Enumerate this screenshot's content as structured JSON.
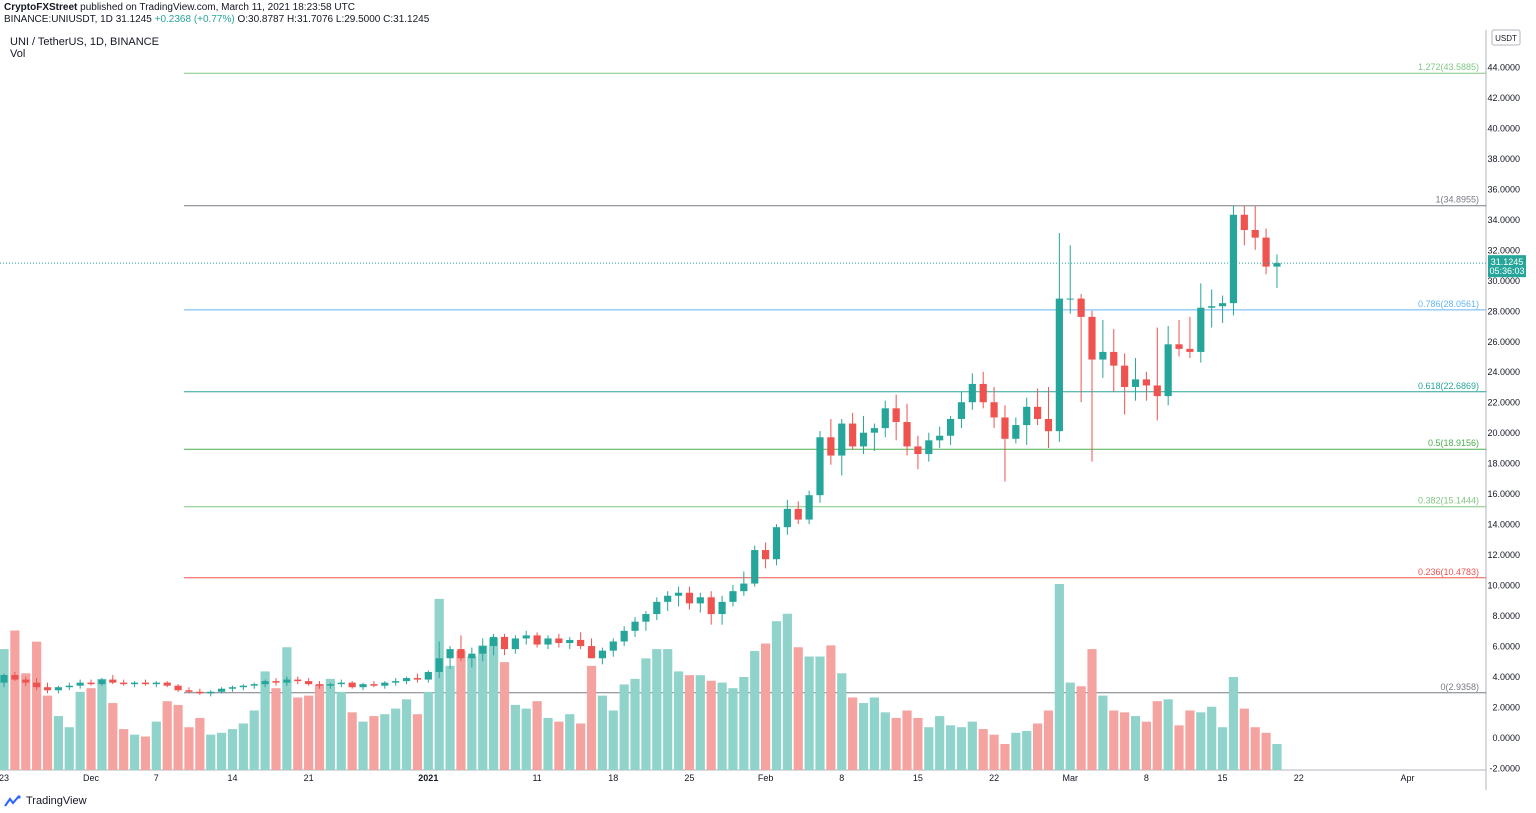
{
  "header": {
    "publisher": "CryptoFXStreet",
    "published_text": "published on TradingView.com, March 11, 2021 18:23:58 UTC",
    "symbol_line": "BINANCE:UNIUSDT, 1D",
    "price": "31.1245",
    "change": "+0.2368 (+0.77%)",
    "ohlc": "O:30.8787 H:31.7076 L:29.5000 C:31.1245"
  },
  "legend": {
    "title": "UNI / TetherUS, 1D, BINANCE",
    "vol_label": "Vol"
  },
  "footer": {
    "brand": "TradingView"
  },
  "colors": {
    "up": "#26a69a",
    "down": "#ef5350",
    "vol_up": "#8fd3cb",
    "vol_down": "#f5a3a1"
  },
  "chart_data": {
    "type": "candlestick",
    "ylim": [
      -2,
      46
    ],
    "currency_label": "USDT",
    "y_ticks": [
      "-2.0000",
      "0.0000",
      "2.0000",
      "4.0000",
      "6.0000",
      "8.0000",
      "10.0000",
      "12.0000",
      "14.0000",
      "16.0000",
      "18.0000",
      "20.0000",
      "22.0000",
      "24.0000",
      "26.0000",
      "28.0000",
      "30.0000",
      "32.0000",
      "34.0000",
      "36.0000",
      "38.0000",
      "40.0000",
      "42.0000",
      "44.0000"
    ],
    "top_partial_tick": "4",
    "x_ticks": [
      {
        "label": "23",
        "date": "2020-11-23",
        "bold": false
      },
      {
        "label": "Dec",
        "date": "2020-12-01",
        "bold": false
      },
      {
        "label": "7",
        "date": "2020-12-07",
        "bold": false
      },
      {
        "label": "14",
        "date": "2020-12-14",
        "bold": false
      },
      {
        "label": "21",
        "date": "2020-12-21",
        "bold": false
      },
      {
        "label": "2021",
        "date": "2021-01-01",
        "bold": true
      },
      {
        "label": "11",
        "date": "2021-01-11",
        "bold": false
      },
      {
        "label": "18",
        "date": "2021-01-18",
        "bold": false
      },
      {
        "label": "25",
        "date": "2021-01-25",
        "bold": false
      },
      {
        "label": "Feb",
        "date": "2021-02-01",
        "bold": false
      },
      {
        "label": "8",
        "date": "2021-02-08",
        "bold": false
      },
      {
        "label": "15",
        "date": "2021-02-15",
        "bold": false
      },
      {
        "label": "22",
        "date": "2021-02-22",
        "bold": false
      },
      {
        "label": "Mar",
        "date": "2021-03-01",
        "bold": false
      },
      {
        "label": "8",
        "date": "2021-03-08",
        "bold": false
      },
      {
        "label": "15",
        "date": "2021-03-15",
        "bold": false
      },
      {
        "label": "22",
        "date": "2021-03-22",
        "bold": false
      },
      {
        "label": "Apr",
        "date": "2021-04-01",
        "bold": false
      }
    ],
    "last_price": {
      "value": 31.1245,
      "label": "31.1245",
      "countdown": "05:36:03"
    },
    "fib_levels": [
      {
        "ratio": "1.272",
        "value": 43.5885,
        "label": "1.272(43.5885)",
        "color": "#81c784"
      },
      {
        "ratio": "1",
        "value": 34.8955,
        "label": "1(34.8955)",
        "color": "#787b86"
      },
      {
        "ratio": "0.786",
        "value": 28.0561,
        "label": "0.786(28.0561)",
        "color": "#64b5f6"
      },
      {
        "ratio": "0.618",
        "value": 22.6869,
        "label": "0.618(22.6869)",
        "color": "#26a69a"
      },
      {
        "ratio": "0.5",
        "value": 18.9156,
        "label": "0.5(18.9156)",
        "color": "#4caf50"
      },
      {
        "ratio": "0.382",
        "value": 15.1444,
        "label": "0.382(15.1444)",
        "color": "#81c784"
      },
      {
        "ratio": "0.236",
        "value": 10.4783,
        "label": "0.236(10.4783)",
        "color": "#ef5350"
      },
      {
        "ratio": "0",
        "value": 2.9358,
        "label": "0(2.9358)",
        "color": "#787b86"
      }
    ],
    "start_date": "2020-11-22",
    "candles": [
      {
        "o": 3.6,
        "h": 4.2,
        "l": 3.3,
        "c": 4.1,
        "v": 6.5
      },
      {
        "o": 4.1,
        "h": 4.3,
        "l": 3.7,
        "c": 3.8,
        "v": 7.5
      },
      {
        "o": 3.8,
        "h": 4.0,
        "l": 3.4,
        "c": 3.6,
        "v": 5.2
      },
      {
        "o": 3.6,
        "h": 3.9,
        "l": 3.1,
        "c": 3.3,
        "v": 6.9
      },
      {
        "o": 3.3,
        "h": 3.6,
        "l": 2.9,
        "c": 3.1,
        "v": 4.0
      },
      {
        "o": 3.1,
        "h": 3.4,
        "l": 2.9,
        "c": 3.3,
        "v": 2.9
      },
      {
        "o": 3.3,
        "h": 3.6,
        "l": 3.1,
        "c": 3.4,
        "v": 2.3
      },
      {
        "o": 3.4,
        "h": 3.8,
        "l": 3.2,
        "c": 3.6,
        "v": 4.2
      },
      {
        "o": 3.6,
        "h": 3.8,
        "l": 3.4,
        "c": 3.5,
        "v": 4.4
      },
      {
        "o": 3.5,
        "h": 3.9,
        "l": 3.4,
        "c": 3.8,
        "v": 4.9
      },
      {
        "o": 3.8,
        "h": 4.1,
        "l": 3.5,
        "c": 3.6,
        "v": 3.6
      },
      {
        "o": 3.6,
        "h": 3.8,
        "l": 3.4,
        "c": 3.5,
        "v": 2.2
      },
      {
        "o": 3.5,
        "h": 3.7,
        "l": 3.3,
        "c": 3.6,
        "v": 1.9
      },
      {
        "o": 3.6,
        "h": 3.8,
        "l": 3.4,
        "c": 3.5,
        "v": 1.8
      },
      {
        "o": 3.5,
        "h": 3.7,
        "l": 3.3,
        "c": 3.6,
        "v": 2.6
      },
      {
        "o": 3.6,
        "h": 3.7,
        "l": 3.3,
        "c": 3.4,
        "v": 3.7
      },
      {
        "o": 3.4,
        "h": 3.5,
        "l": 3.0,
        "c": 3.1,
        "v": 3.5
      },
      {
        "o": 3.1,
        "h": 3.3,
        "l": 2.9,
        "c": 3.0,
        "v": 2.3
      },
      {
        "o": 3.0,
        "h": 3.2,
        "l": 2.8,
        "c": 2.9,
        "v": 2.8
      },
      {
        "o": 2.9,
        "h": 3.1,
        "l": 2.7,
        "c": 3.0,
        "v": 1.9
      },
      {
        "o": 3.0,
        "h": 3.3,
        "l": 2.9,
        "c": 3.2,
        "v": 2.0
      },
      {
        "o": 3.2,
        "h": 3.4,
        "l": 3.0,
        "c": 3.3,
        "v": 2.2
      },
      {
        "o": 3.3,
        "h": 3.5,
        "l": 3.1,
        "c": 3.4,
        "v": 2.5
      },
      {
        "o": 3.4,
        "h": 3.6,
        "l": 3.2,
        "c": 3.5,
        "v": 3.2
      },
      {
        "o": 3.5,
        "h": 3.8,
        "l": 3.3,
        "c": 3.7,
        "v": 5.3
      },
      {
        "o": 3.7,
        "h": 3.9,
        "l": 3.4,
        "c": 3.6,
        "v": 4.4
      },
      {
        "o": 3.6,
        "h": 4.0,
        "l": 3.4,
        "c": 3.8,
        "v": 6.6
      },
      {
        "o": 3.8,
        "h": 4.0,
        "l": 3.5,
        "c": 3.7,
        "v": 3.9
      },
      {
        "o": 3.7,
        "h": 3.9,
        "l": 3.4,
        "c": 3.5,
        "v": 4.0
      },
      {
        "o": 3.5,
        "h": 3.7,
        "l": 3.2,
        "c": 3.4,
        "v": 4.6
      },
      {
        "o": 3.4,
        "h": 3.6,
        "l": 3.2,
        "c": 3.5,
        "v": 4.9
      },
      {
        "o": 3.5,
        "h": 3.8,
        "l": 3.3,
        "c": 3.6,
        "v": 4.2
      },
      {
        "o": 3.6,
        "h": 3.7,
        "l": 3.2,
        "c": 3.3,
        "v": 3.1
      },
      {
        "o": 3.3,
        "h": 3.6,
        "l": 3.1,
        "c": 3.5,
        "v": 2.6
      },
      {
        "o": 3.5,
        "h": 3.7,
        "l": 3.3,
        "c": 3.4,
        "v": 2.9
      },
      {
        "o": 3.4,
        "h": 3.7,
        "l": 3.2,
        "c": 3.6,
        "v": 3.0
      },
      {
        "o": 3.6,
        "h": 3.9,
        "l": 3.4,
        "c": 3.7,
        "v": 3.3
      },
      {
        "o": 3.7,
        "h": 4.0,
        "l": 3.5,
        "c": 3.9,
        "v": 3.8
      },
      {
        "o": 3.9,
        "h": 4.2,
        "l": 3.6,
        "c": 3.8,
        "v": 3.0
      },
      {
        "o": 3.8,
        "h": 4.4,
        "l": 3.6,
        "c": 4.3,
        "v": 4.2
      },
      {
        "o": 4.3,
        "h": 6.3,
        "l": 3.9,
        "c": 5.2,
        "v": 9.2
      },
      {
        "o": 5.2,
        "h": 6.0,
        "l": 4.5,
        "c": 5.8,
        "v": 5.6
      },
      {
        "o": 5.8,
        "h": 6.7,
        "l": 5.0,
        "c": 5.2,
        "v": 6.4
      },
      {
        "o": 5.2,
        "h": 5.9,
        "l": 4.6,
        "c": 5.5,
        "v": 6.1
      },
      {
        "o": 5.5,
        "h": 6.5,
        "l": 5.0,
        "c": 6.0,
        "v": 6.7
      },
      {
        "o": 6.0,
        "h": 6.8,
        "l": 5.4,
        "c": 6.6,
        "v": 7.1
      },
      {
        "o": 6.6,
        "h": 6.8,
        "l": 5.4,
        "c": 5.8,
        "v": 5.8
      },
      {
        "o": 5.8,
        "h": 6.7,
        "l": 5.5,
        "c": 6.5,
        "v": 3.5
      },
      {
        "o": 6.5,
        "h": 7.0,
        "l": 6.1,
        "c": 6.7,
        "v": 3.3
      },
      {
        "o": 6.7,
        "h": 6.9,
        "l": 5.9,
        "c": 6.1,
        "v": 3.7
      },
      {
        "o": 6.1,
        "h": 6.7,
        "l": 5.8,
        "c": 6.5,
        "v": 2.8
      },
      {
        "o": 6.5,
        "h": 6.8,
        "l": 5.9,
        "c": 6.2,
        "v": 2.6
      },
      {
        "o": 6.2,
        "h": 6.6,
        "l": 5.8,
        "c": 6.4,
        "v": 3.0
      },
      {
        "o": 6.4,
        "h": 6.9,
        "l": 5.8,
        "c": 6.0,
        "v": 2.5
      },
      {
        "o": 6.0,
        "h": 6.5,
        "l": 5.3,
        "c": 5.2,
        "v": 5.6
      },
      {
        "o": 5.2,
        "h": 5.9,
        "l": 4.8,
        "c": 5.7,
        "v": 4.0
      },
      {
        "o": 5.7,
        "h": 6.5,
        "l": 5.3,
        "c": 6.3,
        "v": 3.2
      },
      {
        "o": 6.3,
        "h": 7.3,
        "l": 6.0,
        "c": 7.0,
        "v": 4.6
      },
      {
        "o": 7.0,
        "h": 7.9,
        "l": 6.6,
        "c": 7.6,
        "v": 4.9
      },
      {
        "o": 7.6,
        "h": 8.3,
        "l": 7.0,
        "c": 8.1,
        "v": 6.0
      },
      {
        "o": 8.1,
        "h": 9.2,
        "l": 7.7,
        "c": 8.9,
        "v": 6.5
      },
      {
        "o": 8.9,
        "h": 9.6,
        "l": 8.3,
        "c": 9.3,
        "v": 6.5
      },
      {
        "o": 9.3,
        "h": 9.9,
        "l": 8.6,
        "c": 9.5,
        "v": 5.3
      },
      {
        "o": 9.5,
        "h": 9.9,
        "l": 8.4,
        "c": 8.8,
        "v": 5.1
      },
      {
        "o": 8.8,
        "h": 9.5,
        "l": 8.2,
        "c": 9.2,
        "v": 5.1
      },
      {
        "o": 9.2,
        "h": 9.6,
        "l": 7.4,
        "c": 8.1,
        "v": 4.8
      },
      {
        "o": 8.1,
        "h": 9.3,
        "l": 7.4,
        "c": 8.9,
        "v": 4.7
      },
      {
        "o": 8.9,
        "h": 10.0,
        "l": 8.6,
        "c": 9.6,
        "v": 4.4
      },
      {
        "o": 9.6,
        "h": 10.9,
        "l": 9.3,
        "c": 10.1,
        "v": 5.0
      },
      {
        "o": 10.1,
        "h": 12.6,
        "l": 9.9,
        "c": 12.3,
        "v": 6.4
      },
      {
        "o": 12.3,
        "h": 12.8,
        "l": 11.1,
        "c": 11.7,
        "v": 6.8
      },
      {
        "o": 11.7,
        "h": 14.0,
        "l": 11.3,
        "c": 13.8,
        "v": 8.0
      },
      {
        "o": 13.8,
        "h": 15.6,
        "l": 13.3,
        "c": 15.0,
        "v": 8.4
      },
      {
        "o": 15.0,
        "h": 15.5,
        "l": 14.0,
        "c": 14.3,
        "v": 6.6
      },
      {
        "o": 14.3,
        "h": 16.2,
        "l": 14.0,
        "c": 15.9,
        "v": 6.1
      },
      {
        "o": 15.9,
        "h": 20.1,
        "l": 15.4,
        "c": 19.7,
        "v": 6.1
      },
      {
        "o": 19.7,
        "h": 20.9,
        "l": 17.9,
        "c": 18.5,
        "v": 6.7
      },
      {
        "o": 18.5,
        "h": 20.9,
        "l": 17.2,
        "c": 20.6,
        "v": 5.2
      },
      {
        "o": 20.6,
        "h": 21.3,
        "l": 18.9,
        "c": 19.1,
        "v": 3.9
      },
      {
        "o": 19.1,
        "h": 21.1,
        "l": 18.6,
        "c": 20.0,
        "v": 3.6
      },
      {
        "o": 20.0,
        "h": 20.6,
        "l": 18.8,
        "c": 20.3,
        "v": 3.9
      },
      {
        "o": 20.3,
        "h": 22.1,
        "l": 19.7,
        "c": 21.6,
        "v": 3.1
      },
      {
        "o": 21.6,
        "h": 22.5,
        "l": 19.5,
        "c": 20.7,
        "v": 2.8
      },
      {
        "o": 20.7,
        "h": 21.9,
        "l": 18.5,
        "c": 19.1,
        "v": 3.2
      },
      {
        "o": 19.1,
        "h": 19.8,
        "l": 17.6,
        "c": 18.6,
        "v": 2.8
      },
      {
        "o": 18.6,
        "h": 20.0,
        "l": 18.1,
        "c": 19.5,
        "v": 2.3
      },
      {
        "o": 19.5,
        "h": 20.4,
        "l": 19.0,
        "c": 19.8,
        "v": 2.9
      },
      {
        "o": 19.8,
        "h": 21.1,
        "l": 19.2,
        "c": 20.9,
        "v": 2.4
      },
      {
        "o": 20.9,
        "h": 22.7,
        "l": 20.3,
        "c": 22.0,
        "v": 2.3
      },
      {
        "o": 22.0,
        "h": 23.9,
        "l": 21.5,
        "c": 23.2,
        "v": 2.6
      },
      {
        "o": 23.2,
        "h": 24.0,
        "l": 21.6,
        "c": 22.0,
        "v": 2.2
      },
      {
        "o": 22.0,
        "h": 23.0,
        "l": 20.3,
        "c": 21.0,
        "v": 1.9
      },
      {
        "o": 21.0,
        "h": 21.8,
        "l": 16.8,
        "c": 19.6,
        "v": 1.4
      },
      {
        "o": 19.6,
        "h": 21.0,
        "l": 19.3,
        "c": 20.5,
        "v": 2.0
      },
      {
        "o": 20.5,
        "h": 22.3,
        "l": 19.2,
        "c": 21.7,
        "v": 2.1
      },
      {
        "o": 21.7,
        "h": 22.9,
        "l": 20.5,
        "c": 20.9,
        "v": 2.5
      },
      {
        "o": 20.9,
        "h": 23.0,
        "l": 19.0,
        "c": 20.1,
        "v": 3.2
      },
      {
        "o": 20.1,
        "h": 33.1,
        "l": 19.4,
        "c": 28.8,
        "v": 10.0
      },
      {
        "o": 28.8,
        "h": 32.3,
        "l": 27.8,
        "c": 28.8,
        "v": 4.7
      },
      {
        "o": 28.8,
        "h": 29.1,
        "l": 22.0,
        "c": 27.6,
        "v": 4.5
      },
      {
        "o": 27.6,
        "h": 28.0,
        "l": 18.1,
        "c": 24.8,
        "v": 6.5
      },
      {
        "o": 24.8,
        "h": 27.4,
        "l": 23.6,
        "c": 25.3,
        "v": 4.0
      },
      {
        "o": 25.3,
        "h": 26.8,
        "l": 22.7,
        "c": 24.4,
        "v": 3.2
      },
      {
        "o": 24.4,
        "h": 25.2,
        "l": 21.2,
        "c": 23.0,
        "v": 3.1
      },
      {
        "o": 23.0,
        "h": 24.9,
        "l": 22.1,
        "c": 23.5,
        "v": 2.9
      },
      {
        "o": 23.5,
        "h": 24.0,
        "l": 22.1,
        "c": 23.1,
        "v": 2.6
      },
      {
        "o": 23.1,
        "h": 26.9,
        "l": 20.8,
        "c": 22.4,
        "v": 3.7
      },
      {
        "o": 22.4,
        "h": 27.0,
        "l": 21.8,
        "c": 25.8,
        "v": 3.8
      },
      {
        "o": 25.8,
        "h": 27.4,
        "l": 25.0,
        "c": 25.5,
        "v": 2.4
      },
      {
        "o": 25.5,
        "h": 27.6,
        "l": 24.9,
        "c": 25.3,
        "v": 3.2
      },
      {
        "o": 25.3,
        "h": 29.8,
        "l": 24.6,
        "c": 28.2,
        "v": 3.1
      },
      {
        "o": 28.2,
        "h": 29.4,
        "l": 26.9,
        "c": 28.3,
        "v": 3.4
      },
      {
        "o": 28.3,
        "h": 29.0,
        "l": 27.2,
        "c": 28.5,
        "v": 2.3
      },
      {
        "o": 28.5,
        "h": 34.9,
        "l": 27.7,
        "c": 34.3,
        "v": 5.0
      },
      {
        "o": 34.3,
        "h": 34.9,
        "l": 32.3,
        "c": 33.3,
        "v": 3.3
      },
      {
        "o": 33.3,
        "h": 34.9,
        "l": 32.0,
        "c": 32.8,
        "v": 2.3
      },
      {
        "o": 32.8,
        "h": 33.4,
        "l": 30.4,
        "c": 30.9,
        "v": 2.0
      },
      {
        "o": 30.9,
        "h": 31.7,
        "l": 29.5,
        "c": 31.1245,
        "v": 1.4
      }
    ]
  }
}
